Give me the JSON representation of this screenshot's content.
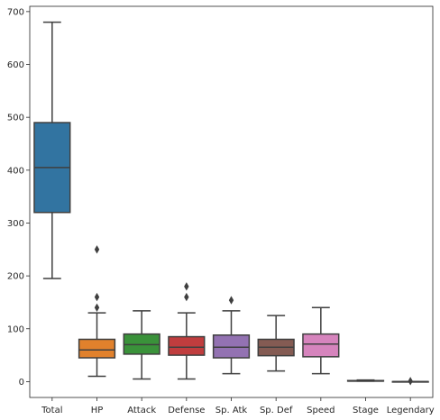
{
  "chart_data": {
    "type": "box",
    "categories": [
      "Total",
      "HP",
      "Attack",
      "Defense",
      "Sp. Atk",
      "Sp. Def",
      "Speed",
      "Stage",
      "Legendary"
    ],
    "title": "",
    "xlabel": "",
    "ylabel": "",
    "ylim": [
      -30,
      710
    ],
    "yticks": [
      0,
      100,
      200,
      300,
      400,
      500,
      600,
      700
    ],
    "grid": false,
    "boxes": [
      {
        "category": "Total",
        "color": "#3274a1",
        "whisker_low": 195,
        "q1": 320,
        "median": 405,
        "q3": 490,
        "whisker_high": 680,
        "fliers": []
      },
      {
        "category": "HP",
        "color": "#e1812c",
        "whisker_low": 10,
        "q1": 45,
        "median": 60,
        "q3": 80,
        "whisker_high": 130,
        "fliers": [
          140,
          160,
          250
        ]
      },
      {
        "category": "Attack",
        "color": "#3a923a",
        "whisker_low": 5,
        "q1": 52,
        "median": 70,
        "q3": 90,
        "whisker_high": 134,
        "fliers": []
      },
      {
        "category": "Defense",
        "color": "#c03d3e",
        "whisker_low": 5,
        "q1": 50,
        "median": 65,
        "q3": 85,
        "whisker_high": 130,
        "fliers": [
          160,
          180
        ]
      },
      {
        "category": "Sp. Atk",
        "color": "#9372b2",
        "whisker_low": 15,
        "q1": 45,
        "median": 65,
        "q3": 88,
        "whisker_high": 134,
        "fliers": [
          154
        ]
      },
      {
        "category": "Sp. Def",
        "color": "#845b53",
        "whisker_low": 20,
        "q1": 49,
        "median": 65,
        "q3": 80,
        "whisker_high": 125,
        "fliers": []
      },
      {
        "category": "Speed",
        "color": "#d684bd",
        "whisker_low": 15,
        "q1": 47,
        "median": 71,
        "q3": 90,
        "whisker_high": 140,
        "fliers": []
      },
      {
        "category": "Stage",
        "color": "#7f7f7f",
        "whisker_low": 1,
        "q1": 1,
        "median": 1,
        "q3": 2,
        "whisker_high": 3,
        "fliers": []
      },
      {
        "category": "Legendary",
        "color": "#a9aa35",
        "whisker_low": 0,
        "q1": 0,
        "median": 0,
        "q3": 0,
        "whisker_high": 0,
        "fliers": [
          1
        ]
      }
    ]
  }
}
